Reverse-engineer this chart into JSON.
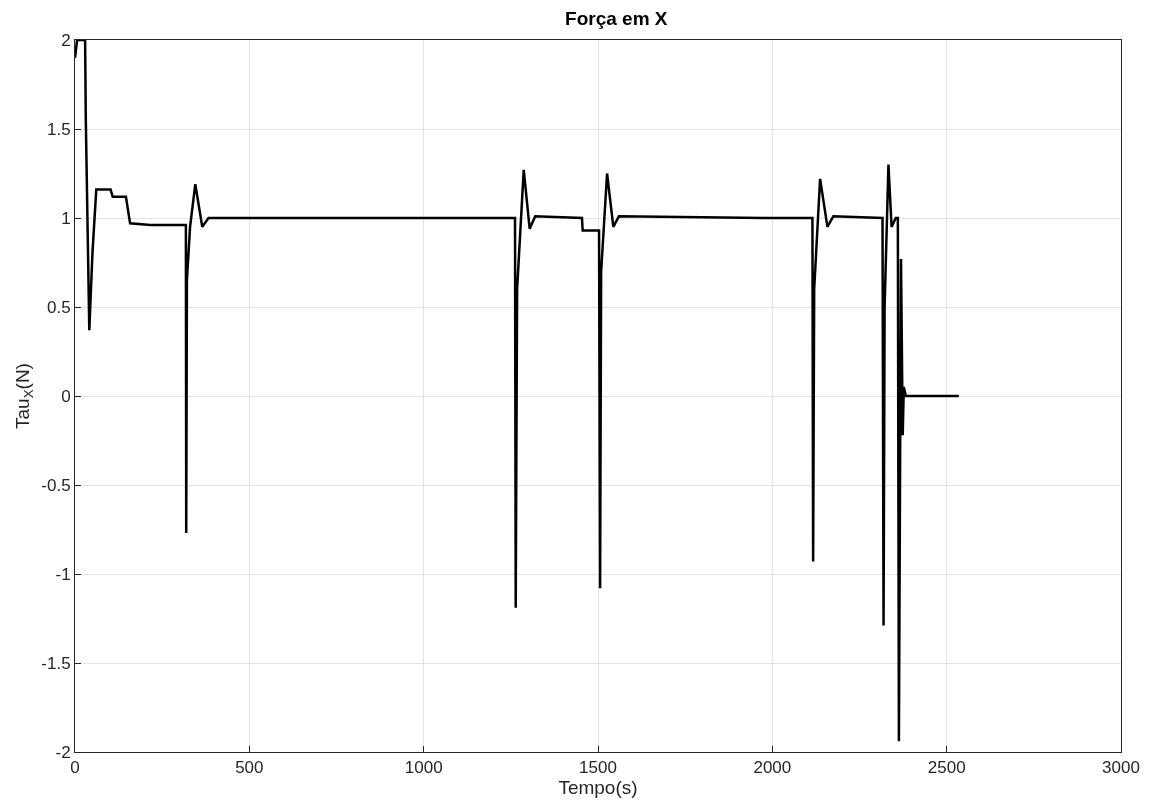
{
  "chart_data": {
    "type": "line",
    "title": "Força em X",
    "xlabel": "Tempo(s)",
    "ylabel": "Tau$_{X}$(N)",
    "xlim": [
      0,
      3000
    ],
    "xticks": [
      0,
      500,
      1000,
      1500,
      2000,
      2500,
      3000
    ],
    "ylim": [
      -2,
      2
    ],
    "yticks": [
      -2,
      -1.5,
      -1,
      -0.5,
      0,
      0.5,
      1,
      1.5,
      2
    ],
    "grid": true,
    "marker": "none",
    "line_style": "solid",
    "x": [
      0,
      6,
      29,
      31,
      41,
      50,
      61,
      102,
      108,
      146,
      158,
      216,
      318,
      319,
      321,
      330,
      345,
      365,
      383,
      1000,
      1262,
      1264,
      1268,
      1287,
      1304,
      1320,
      1454,
      1456,
      1503,
      1506,
      1509,
      1526,
      1544,
      1560,
      2000,
      2115,
      2117,
      2120,
      2137,
      2158,
      2175,
      2316,
      2319,
      2322,
      2333,
      2342,
      2354,
      2360,
      2363,
      2369,
      2374,
      2377,
      2383,
      2535
    ],
    "series": [
      {
        "color": "#000000",
        "values": [
          1.9,
          2,
          2,
          1.55,
          0.37,
          0.8,
          1.16,
          1.16,
          1.12,
          1.12,
          0.97,
          0.96,
          0.96,
          -0.77,
          0.65,
          0.95,
          1.19,
          0.95,
          1.0,
          1.0,
          1.0,
          -1.19,
          0.6,
          1.27,
          0.94,
          1.01,
          1.0,
          0.93,
          0.93,
          -1.08,
          0.7,
          1.25,
          0.95,
          1.01,
          1.0,
          1.0,
          -0.93,
          0.6,
          1.22,
          0.95,
          1.01,
          1.0,
          -1.29,
          0.5,
          1.3,
          0.95,
          1.0,
          1.0,
          -1.94,
          0.77,
          -0.22,
          0.05,
          0,
          0
        ]
      }
    ]
  }
}
